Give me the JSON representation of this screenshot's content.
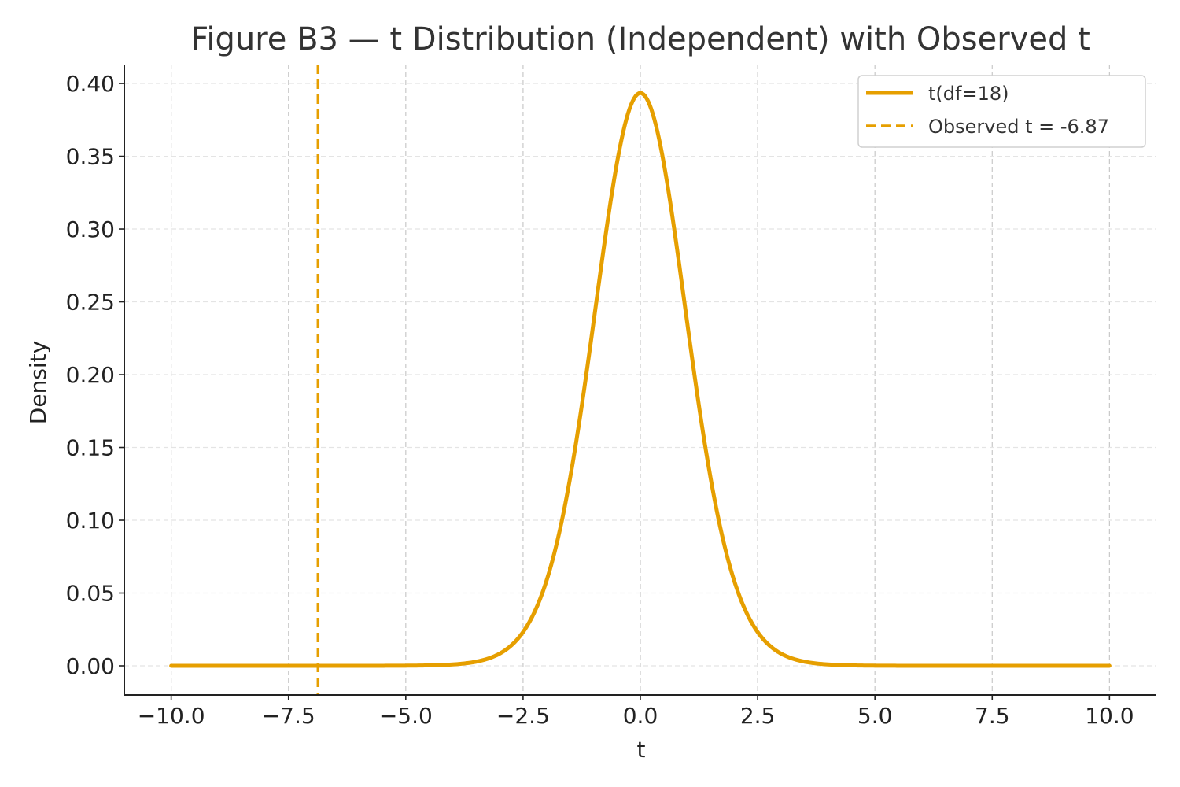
{
  "chart_data": {
    "type": "line",
    "title": "Figure B3 — t Distribution (Independent) with Observed t",
    "xlabel": "t",
    "ylabel": "Density",
    "xlim": [
      -11,
      11
    ],
    "ylim": [
      -0.02,
      0.413
    ],
    "x_ticks": [
      -10.0,
      -7.5,
      -5.0,
      -2.5,
      0.0,
      2.5,
      5.0,
      7.5,
      10.0
    ],
    "x_tick_labels": [
      "−10.0",
      "−7.5",
      "−5.0",
      "−2.5",
      "0.0",
      "2.5",
      "5.0",
      "7.5",
      "10.0"
    ],
    "y_ticks": [
      0.0,
      0.05,
      0.1,
      0.15,
      0.2,
      0.25,
      0.3,
      0.35,
      0.4
    ],
    "y_tick_labels": [
      "0.00",
      "0.05",
      "0.10",
      "0.15",
      "0.20",
      "0.25",
      "0.30",
      "0.35",
      "0.40"
    ],
    "grid": true,
    "legend_position": "top-right",
    "series": [
      {
        "name": "t(df=18)",
        "style": "solid",
        "color": "#E69F00",
        "df": 18,
        "x": [
          -10,
          -9,
          -8,
          -7,
          -6,
          -5,
          -4,
          -3.5,
          -3,
          -2.5,
          -2,
          -1.75,
          -1.5,
          -1.25,
          -1,
          -0.75,
          -0.5,
          -0.25,
          0,
          0.25,
          0.5,
          0.75,
          1,
          1.25,
          1.5,
          1.75,
          2,
          2.5,
          3,
          3.5,
          4,
          5,
          6,
          7,
          8,
          9,
          10
        ],
        "y": [
          0,
          0,
          0,
          0,
          0,
          0.0001,
          0.0017,
          0.0045,
          0.0102,
          0.0232,
          0.054,
          0.0854,
          0.1265,
          0.1771,
          0.236,
          0.2967,
          0.3479,
          0.3827,
          0.394,
          0.3827,
          0.3479,
          0.2967,
          0.236,
          0.1771,
          0.1265,
          0.0854,
          0.054,
          0.0232,
          0.0102,
          0.0045,
          0.0017,
          0.0001,
          0,
          0,
          0,
          0,
          0
        ]
      },
      {
        "name": "Observed t = -6.87",
        "style": "dashed",
        "color": "#E69F00",
        "vline_x": -6.87
      }
    ]
  }
}
